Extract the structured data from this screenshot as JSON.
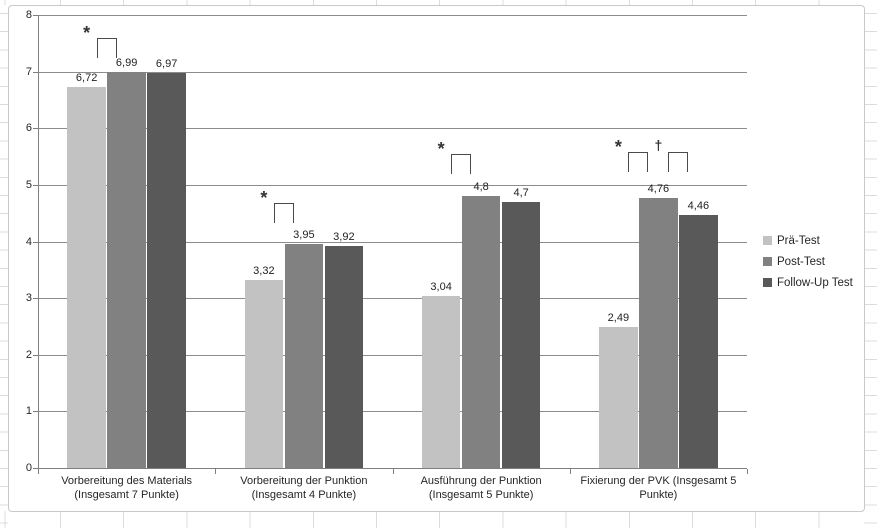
{
  "chart_data": {
    "type": "bar",
    "title": "",
    "categories": [
      [
        "Vorbereitung des Materials",
        "(Insgesamt 7 Punkte)"
      ],
      [
        "Vorbereitung der Punktion",
        "(Insgesamt 4 Punkte)"
      ],
      [
        "Ausführung der Punktion",
        "(Insgesamt 5 Punkte)"
      ],
      [
        "Fixierung der PVK (Insgesamt 5",
        "Punkte)"
      ]
    ],
    "series": [
      {
        "name": "Prä-Test",
        "color": "#c2c2c2",
        "values": [
          6.72,
          3.32,
          3.04,
          2.49
        ],
        "labels": [
          "6,72",
          "3,32",
          "3,04",
          "2,49"
        ]
      },
      {
        "name": "Post-Test",
        "color": "#818181",
        "values": [
          6.99,
          3.95,
          4.8,
          4.76
        ],
        "labels": [
          "6,99",
          "3,95",
          "4,8",
          "4,76"
        ]
      },
      {
        "name": "Follow-Up Test",
        "color": "#595959",
        "values": [
          6.97,
          3.92,
          4.7,
          4.46
        ],
        "labels": [
          "6,97",
          "3,92",
          "4,7",
          "4,46"
        ]
      }
    ],
    "y_axis": {
      "min": 0,
      "max": 8,
      "step": 1,
      "tick_labels": [
        "0",
        "1",
        "2",
        "3",
        "4",
        "5",
        "6",
        "7",
        "8"
      ]
    },
    "legend": {
      "position": "right",
      "entries": [
        "Prä-Test",
        "Post-Test",
        "Follow-Up Test"
      ]
    },
    "grid": true,
    "annotations": [
      {
        "group": 0,
        "between": [
          0,
          1
        ],
        "symbol": "*",
        "top_value": 7.6
      },
      {
        "group": 1,
        "between": [
          0,
          1
        ],
        "symbol": "*",
        "top_value": 4.68
      },
      {
        "group": 2,
        "between": [
          0,
          1
        ],
        "symbol": "*",
        "top_value": 5.55
      },
      {
        "group": 3,
        "between": [
          0,
          1
        ],
        "symbol": "*",
        "top_value": 5.58
      },
      {
        "group": 3,
        "between": [
          1,
          2
        ],
        "symbol": "†",
        "top_value": 5.58
      }
    ],
    "styles": {
      "gridline_color": "#8c8c8c",
      "axis_color": "#7f7f7f",
      "annotation_color": "#4a4a4a",
      "text_color": "#262626"
    }
  }
}
